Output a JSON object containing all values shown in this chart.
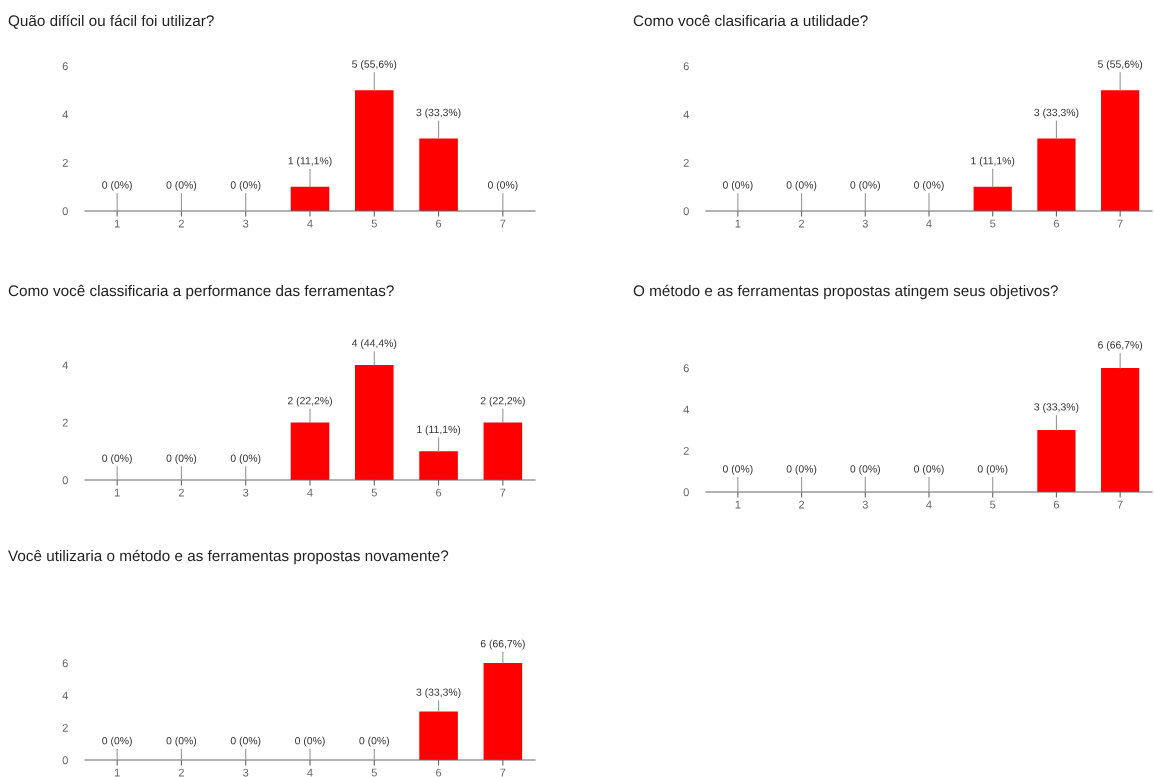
{
  "chart_data": [
    {
      "type": "bar",
      "title": "Quão difícil ou fácil foi utilizar?",
      "categories": [
        "1",
        "2",
        "3",
        "4",
        "5",
        "6",
        "7"
      ],
      "values": [
        0,
        0,
        0,
        1,
        5,
        3,
        0
      ],
      "value_labels": [
        "0 (0%)",
        "0 (0%)",
        "0 (0%)",
        "1 (11,1%)",
        "5 (55,6%)",
        "3 (33,3%)",
        "0 (0%)"
      ],
      "color": "#ff0000",
      "ylim": [
        0,
        6
      ],
      "yticks": [
        0,
        2,
        4,
        6
      ]
    },
    {
      "type": "bar",
      "title": "Como você clasificaria a utilidade?",
      "categories": [
        "1",
        "2",
        "3",
        "4",
        "5",
        "6",
        "7"
      ],
      "values": [
        0,
        0,
        0,
        0,
        1,
        3,
        5
      ],
      "value_labels": [
        "0 (0%)",
        "0 (0%)",
        "0 (0%)",
        "0 (0%)",
        "1 (11,1%)",
        "3 (33,3%)",
        "5 (55,6%)"
      ],
      "color": "#ff0000",
      "ylim": [
        0,
        6
      ],
      "yticks": [
        0,
        2,
        4,
        6
      ]
    },
    {
      "type": "bar",
      "title": "Como você classificaria a performance das ferramentas?",
      "categories": [
        "1",
        "2",
        "3",
        "4",
        "5",
        "6",
        "7"
      ],
      "values": [
        0,
        0,
        0,
        2,
        4,
        1,
        2
      ],
      "value_labels": [
        "0 (0%)",
        "0 (0%)",
        "0 (0%)",
        "2 (22,2%)",
        "4 (44,4%)",
        "1 (11,1%)",
        "2 (22,2%)"
      ],
      "color": "#ff0000",
      "ylim": [
        0,
        4
      ],
      "yticks": [
        0,
        2,
        4
      ]
    },
    {
      "type": "bar",
      "title": "O método e as ferramentas propostas atingem seus objetivos?",
      "categories": [
        "1",
        "2",
        "3",
        "4",
        "5",
        "6",
        "7"
      ],
      "values": [
        0,
        0,
        0,
        0,
        0,
        3,
        6
      ],
      "value_labels": [
        "0 (0%)",
        "0 (0%)",
        "0 (0%)",
        "0 (0%)",
        "0 (0%)",
        "3 (33,3%)",
        "6 (66,7%)"
      ],
      "color": "#ff0000",
      "ylim": [
        0,
        6
      ],
      "yticks": [
        0,
        2,
        4,
        6
      ]
    },
    {
      "type": "bar",
      "title": "Você utilizaria o método e as ferramentas propostas novamente?",
      "categories": [
        "1",
        "2",
        "3",
        "4",
        "5",
        "6",
        "7"
      ],
      "values": [
        0,
        0,
        0,
        0,
        0,
        3,
        6
      ],
      "value_labels": [
        "0 (0%)",
        "0 (0%)",
        "0 (0%)",
        "0 (0%)",
        "0 (0%)",
        "3 (33,3%)",
        "6 (66,7%)"
      ],
      "color": "#ff0000",
      "ylim": [
        0,
        6
      ],
      "yticks": [
        0,
        2,
        4,
        6
      ]
    }
  ]
}
